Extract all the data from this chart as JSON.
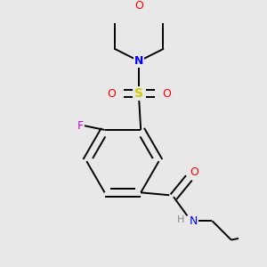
{
  "bg_color": "#e8e8e8",
  "bond_color": "#000000",
  "line_width": 1.4,
  "atom_colors": {
    "O": "#ff0000",
    "N_morpholine": "#0000ff",
    "N_amide": "#0000ff",
    "S": "#cccc00",
    "F": "#cc00cc",
    "H": "#888888"
  },
  "font_size": 9,
  "fig_size": [
    3.0,
    3.0
  ],
  "dpi": 100
}
